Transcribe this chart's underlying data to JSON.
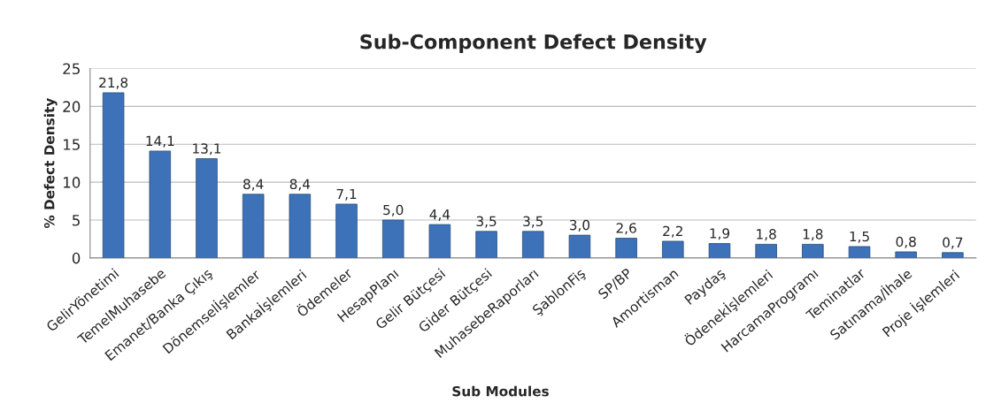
{
  "chart_data": {
    "type": "bar",
    "title": "Sub-Component Defect Density",
    "xlabel": "Sub Modules",
    "ylabel": "% Defect Density",
    "categories": [
      "GelirYönetimi",
      "TemelMuhasebe",
      "Emanet/Banka Çıkış",
      "Dönemselİşlemler",
      "Bankaİşlemleri",
      "Ödemeler",
      "HesapPlanı",
      "Gelir Bütçesi",
      "Gider Bütçesi",
      "MuhasebeRaporları",
      "ŞablonFiş",
      "SP/BP",
      "Amortisman",
      "Paydaş",
      "Ödenekİşlemleri",
      "HarcamaProgramı",
      "Teminatlar",
      "Satınama/İhale",
      "Proje İşlemleri"
    ],
    "values": [
      21.8,
      14.1,
      13.1,
      8.4,
      8.4,
      7.1,
      5.0,
      4.4,
      3.5,
      3.5,
      3.0,
      2.6,
      2.2,
      1.9,
      1.8,
      1.8,
      1.5,
      0.8,
      0.7
    ],
    "value_labels": [
      "21,8",
      "14,1",
      "13,1",
      "8,4",
      "8,4",
      "7,1",
      "5,0",
      "4,4",
      "3,5",
      "3,5",
      "3,0",
      "2,6",
      "2,2",
      "1,9",
      "1,8",
      "1,8",
      "1,5",
      "0,8",
      "0,7"
    ],
    "color": "#3d72b8",
    "ylim": [
      0,
      25
    ],
    "yticks": [
      0,
      5,
      10,
      15,
      20,
      25
    ],
    "grid": "y"
  }
}
